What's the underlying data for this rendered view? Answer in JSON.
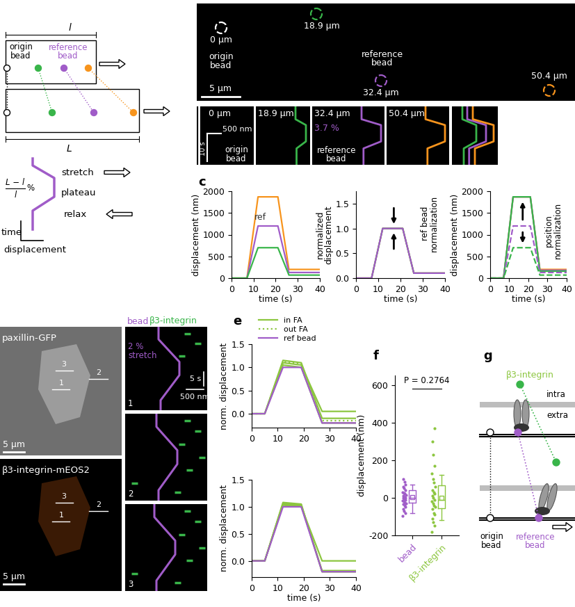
{
  "panel_labels": [
    "c",
    "e",
    "f",
    "g"
  ],
  "panel_a": {
    "top_width": "l",
    "bottom_width": "L",
    "origin_bead": "origin\nbead",
    "reference_bead": "reference\nbead",
    "phases": [
      "stretch",
      "plateau",
      "relax"
    ],
    "strain": {
      "numerator": "L − l",
      "denominator": "l",
      "unit": "%"
    },
    "axis_time": "time",
    "axis_displacement": "displacement"
  },
  "panel_b": {
    "beads": [
      {
        "label": "0 µm",
        "caption": "origin\nbead",
        "color": "#ffffff"
      },
      {
        "label": "18.9 µm",
        "color": "#39b54a"
      },
      {
        "label": "32.4 µm",
        "caption": "reference\nbead",
        "color": "#a05cc8"
      },
      {
        "label": "50.4 µm",
        "color": "#f7941d"
      }
    ],
    "scale_bar": "5 µm",
    "kymographs": {
      "titles": [
        "0 µm",
        "18.9 µm",
        "32.4 µm",
        "50.4 µm"
      ],
      "scale_distance": "500 nm",
      "scale_time": "10 s",
      "captions": [
        "origin\nbead",
        "reference\nbead"
      ],
      "strain": "3.7 %"
    }
  },
  "panel_d": {
    "images": [
      "paxillin-GFP",
      "β3-integrin-mEOS2"
    ],
    "scale_bar": "5 µm",
    "regions": [
      "1",
      "2",
      "3"
    ],
    "kymograph_legend": [
      {
        "text": "bead",
        "color": "#a05cc8"
      },
      {
        "text": "β3-integrin",
        "color": "#39b54a"
      }
    ],
    "strain": "2 %\nstretch",
    "scale_time": "5 s",
    "scale_distance": "500 nm"
  },
  "panel_g": {
    "integrin": "β3-integrin",
    "intra": "intra",
    "extra": "extra",
    "origin_bead": "origin\nbead",
    "reference_bead": "reference\nbead"
  },
  "chart_data": [
    {
      "type": "line",
      "x": [
        0,
        7,
        12,
        21,
        26,
        40
      ],
      "xlim": [
        0,
        40
      ],
      "xticks": [
        0,
        10,
        20,
        30,
        40
      ],
      "ylim": [
        0,
        2000
      ],
      "yticks": [
        0,
        500,
        1000,
        1500,
        2000
      ],
      "x_label": "time (s)",
      "y_label": "displacement (nm)",
      "series": [
        {
          "color": "#f7941d",
          "values": [
            0,
            0,
            1870,
            1870,
            200,
            200
          ]
        },
        {
          "color": "#a05cc8",
          "values": [
            0,
            0,
            1200,
            1200,
            130,
            130
          ]
        },
        {
          "color": "#39b54a",
          "values": [
            0,
            0,
            700,
            700,
            70,
            70
          ]
        }
      ],
      "annotations": [
        {
          "text": "ref",
          "x": 13,
          "y": 1290
        }
      ]
    },
    {
      "type": "line",
      "x": [
        0,
        7,
        12,
        21,
        26,
        40
      ],
      "xlim": [
        0,
        40
      ],
      "xticks": [
        0,
        10,
        20,
        30,
        40
      ],
      "ylim": [
        0,
        1.75
      ],
      "yticks": [
        {
          "value": 0,
          "label": "0.0"
        },
        {
          "value": 0.5,
          "label": "0.5"
        },
        {
          "value": 1.0,
          "label": "1.0"
        },
        {
          "value": 1.5,
          "label": "1.5"
        }
      ],
      "x_label": "time (s)",
      "y_label": "normalized\ndisplacement",
      "series": [
        {
          "color": "#f7941d",
          "values": [
            0,
            0,
            1,
            1,
            0.1,
            0.1
          ]
        },
        {
          "color": "#39b54a",
          "values": [
            0,
            0,
            1,
            1,
            0.1,
            0.1
          ]
        },
        {
          "color": "#a05cc8",
          "values": [
            0,
            0,
            1,
            1,
            0.1,
            0.1
          ]
        }
      ],
      "vertical_notes": [
        {
          "text": "ref bead\nnormalization",
          "x": 33,
          "y": 1.1
        }
      ],
      "arrows": [
        {
          "x": 17,
          "from": 1.45,
          "to": 1.05
        },
        {
          "x": 17,
          "from": 0.55,
          "to": 0.95
        }
      ]
    },
    {
      "type": "line",
      "x": [
        0,
        7,
        12,
        21,
        26,
        40
      ],
      "xlim": [
        0,
        40
      ],
      "xticks": [
        0,
        10,
        20,
        30,
        40
      ],
      "ylim": [
        0,
        2000
      ],
      "yticks": [
        0,
        500,
        1000,
        1500,
        2000
      ],
      "x_label": "time (s)",
      "y_label": "displacement (nm)",
      "series": [
        {
          "color": "#f7941d",
          "values": [
            0,
            0,
            1870,
            1870,
            200,
            200
          ]
        },
        {
          "color": "#a05cc8",
          "values": [
            0,
            0,
            1870,
            1870,
            180,
            180
          ]
        },
        {
          "color": "#39b54a",
          "values": [
            0,
            0,
            1870,
            1870,
            160,
            160
          ]
        },
        {
          "color": "#a05cc8",
          "line_style": "dashed",
          "values": [
            0,
            0,
            1200,
            1200,
            130,
            130
          ]
        },
        {
          "color": "#39b54a",
          "line_style": "dashed",
          "values": [
            0,
            0,
            700,
            700,
            70,
            70
          ]
        }
      ],
      "vertical_notes": [
        {
          "text": "position\nnormalization",
          "x": 33,
          "y": 1100
        }
      ],
      "arrows": [
        {
          "x": 17,
          "from": 1300,
          "to": 1800
        },
        {
          "x": 17,
          "from": 1100,
          "to": 760
        }
      ]
    },
    {
      "type": "line",
      "x": [
        0,
        5,
        12,
        19,
        27,
        40
      ],
      "xlim": [
        0,
        40
      ],
      "xticks": [
        0,
        10,
        20,
        30,
        40
      ],
      "ylim": [
        -0.3,
        1.5
      ],
      "yticks": [
        {
          "value": 0,
          "label": "0.0"
        },
        {
          "value": 0.5,
          "label": "0.5"
        },
        {
          "value": 1.0,
          "label": "1.0"
        },
        {
          "value": 1.5,
          "label": "1.5"
        }
      ],
      "y_label": "norm. displacement",
      "legend": "upper left",
      "series": [
        {
          "name": "in FA",
          "color": "#8cc63f",
          "line_style": "solid",
          "values": [
            [
              0,
              0,
              1.15,
              1.1,
              -0.1,
              -0.1
            ],
            [
              0,
              0,
              1.1,
              1.05,
              0.05,
              0.05
            ],
            [
              0,
              0,
              1.05,
              1.0,
              -0.2,
              -0.2
            ]
          ]
        },
        {
          "name": "out FA",
          "color": "#8cc63f",
          "line_style": "dotted",
          "values": [
            [
              0,
              0,
              1.12,
              1.08,
              -0.15,
              -0.15
            ]
          ]
        },
        {
          "name": "ref bead",
          "color": "#a05cc8",
          "line_style": "solid",
          "values": [
            [
              0,
              0,
              1.0,
              1.0,
              -0.2,
              -0.2
            ]
          ]
        }
      ]
    },
    {
      "type": "line",
      "x": [
        0,
        5,
        12,
        19,
        27,
        40
      ],
      "xlim": [
        0,
        40
      ],
      "xticks": [
        0,
        10,
        20,
        30,
        40
      ],
      "ylim": [
        -0.3,
        1.5
      ],
      "yticks": [
        {
          "value": 0,
          "label": "0.0"
        },
        {
          "value": 0.5,
          "label": "0.5"
        },
        {
          "value": 1.0,
          "label": "1.0"
        },
        {
          "value": 1.5,
          "label": "1.5"
        }
      ],
      "x_label": "time (s)",
      "y_label": "norm. displacement",
      "series": [
        {
          "color": "#8cc63f",
          "line_style": "solid",
          "values": [
            [
              0,
              0,
              1.08,
              1.05,
              -0.2,
              -0.2
            ],
            [
              0,
              0,
              1.05,
              1.02,
              -0.18,
              -0.18
            ],
            [
              0,
              0,
              1.03,
              1.0,
              0.0,
              0.0
            ],
            [
              0,
              0,
              1.06,
              1.04,
              -0.2,
              -0.2
            ]
          ]
        },
        {
          "color": "#a05cc8",
          "line_style": "solid",
          "values": [
            [
              0,
              0,
              1.0,
              1.0,
              -0.2,
              -0.2
            ]
          ]
        }
      ]
    },
    {
      "type": "box",
      "categories": [
        "bead",
        "β3-integrin"
      ],
      "colors": [
        "#a05cc8",
        "#8cc63f"
      ],
      "ylim": [
        -200,
        650
      ],
      "yticks": [
        -200,
        0,
        200,
        400,
        600
      ],
      "y_label": "displacement (nm)",
      "boxes": [
        {
          "whislo": -80,
          "q1": -25,
          "med": 0,
          "q3": 40,
          "whishi": 70,
          "mean": 5
        },
        {
          "whislo": -120,
          "q1": -55,
          "med": -10,
          "q3": 65,
          "whishi": 120,
          "mean": 0
        }
      ],
      "points": [
        [
          -95,
          -80,
          -70,
          -60,
          -50,
          -40,
          -35,
          -30,
          -25,
          -20,
          -15,
          -10,
          -5,
          0,
          0,
          5,
          10,
          15,
          20,
          25,
          30,
          40,
          50,
          60,
          70,
          85,
          100
        ],
        [
          -180,
          -150,
          -130,
          -110,
          -90,
          -80,
          -60,
          -50,
          -40,
          -30,
          -20,
          -10,
          0,
          10,
          20,
          30,
          40,
          60,
          80,
          100,
          130,
          170,
          230,
          300,
          370
        ]
      ],
      "annotations": [
        {
          "text": "P = 0.2764",
          "x": 0.5,
          "y": 600,
          "bracket_y": 580
        }
      ]
    }
  ]
}
